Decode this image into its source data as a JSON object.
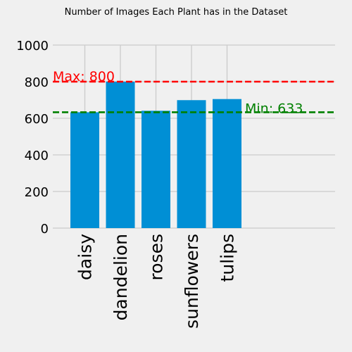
{
  "chart_data": {
    "type": "bar",
    "title": "Number of Images Each Plant has in the Dataset",
    "categories": [
      "daisy",
      "dandelion",
      "roses",
      "sunflowers",
      "tulips"
    ],
    "values": [
      633,
      800,
      641,
      699,
      705
    ],
    "bar_color": "#008fd5",
    "ylim": [
      0,
      1000
    ],
    "yticks": [
      0,
      200,
      400,
      600,
      800,
      1000
    ],
    "grid": true,
    "reference_lines": [
      {
        "label": "Max: 800",
        "value": 800,
        "color": "#ff0000",
        "label_position": "left"
      },
      {
        "label": "Min: 633",
        "value": 633,
        "color": "#008000",
        "label_position": "right"
      }
    ]
  }
}
